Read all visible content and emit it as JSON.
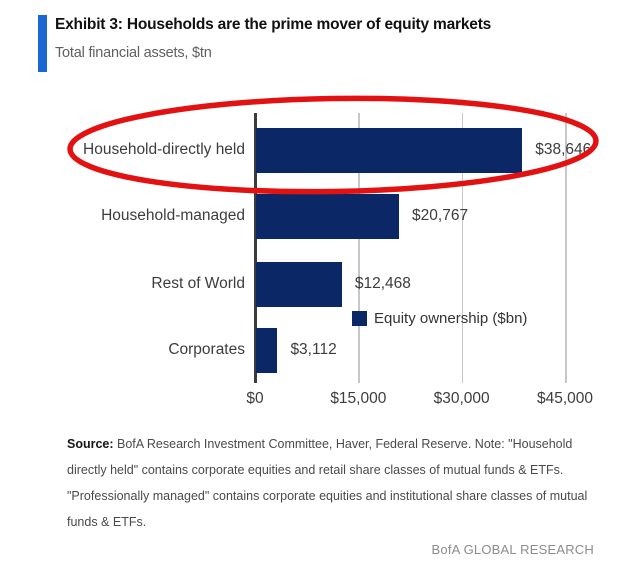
{
  "header": {
    "title": "Exhibit 3: Households are the prime mover of equity markets",
    "subtitle": "Total financial assets, $tn",
    "accent_color": "#1967d2"
  },
  "chart_data": {
    "type": "bar",
    "orientation": "horizontal",
    "title": "Exhibit 3: Households are the prime mover of equity markets",
    "subtitle": "Total financial assets, $tn",
    "categories": [
      "Household-directly held",
      "Household-managed",
      "Rest of World",
      "Corporates"
    ],
    "values": [
      38646,
      20767,
      12468,
      3112
    ],
    "value_labels": [
      "$38,646",
      "$20,767",
      "$12,468",
      "$3,112"
    ],
    "legend": {
      "label": "Equity ownership ($bn)",
      "position": "right-middle"
    },
    "x_ticks": [
      {
        "label": "$0",
        "value": 0
      },
      {
        "label": "$15,000",
        "value": 15000
      },
      {
        "label": "$30,000",
        "value": 30000
      },
      {
        "label": "$45,000",
        "value": 45000
      }
    ],
    "xlim": [
      0,
      45000
    ],
    "grid": true,
    "bar_color": "#0b2766",
    "annotation": {
      "shape": "ellipse",
      "color": "#e31212",
      "target": "Household-directly held"
    }
  },
  "source": {
    "label": "Source:",
    "lines": [
      " BofA Research Investment Committee, Haver, Federal Reserve. Note: \"Household",
      "directly held\" contains corporate equities and retail share classes of mutual funds & ETFs.",
      "\"Professionally managed\" contains corporate equities and institutional share classes of mutual",
      "funds & ETFs."
    ]
  },
  "footer": {
    "brand": "BofA GLOBAL RESEARCH"
  }
}
